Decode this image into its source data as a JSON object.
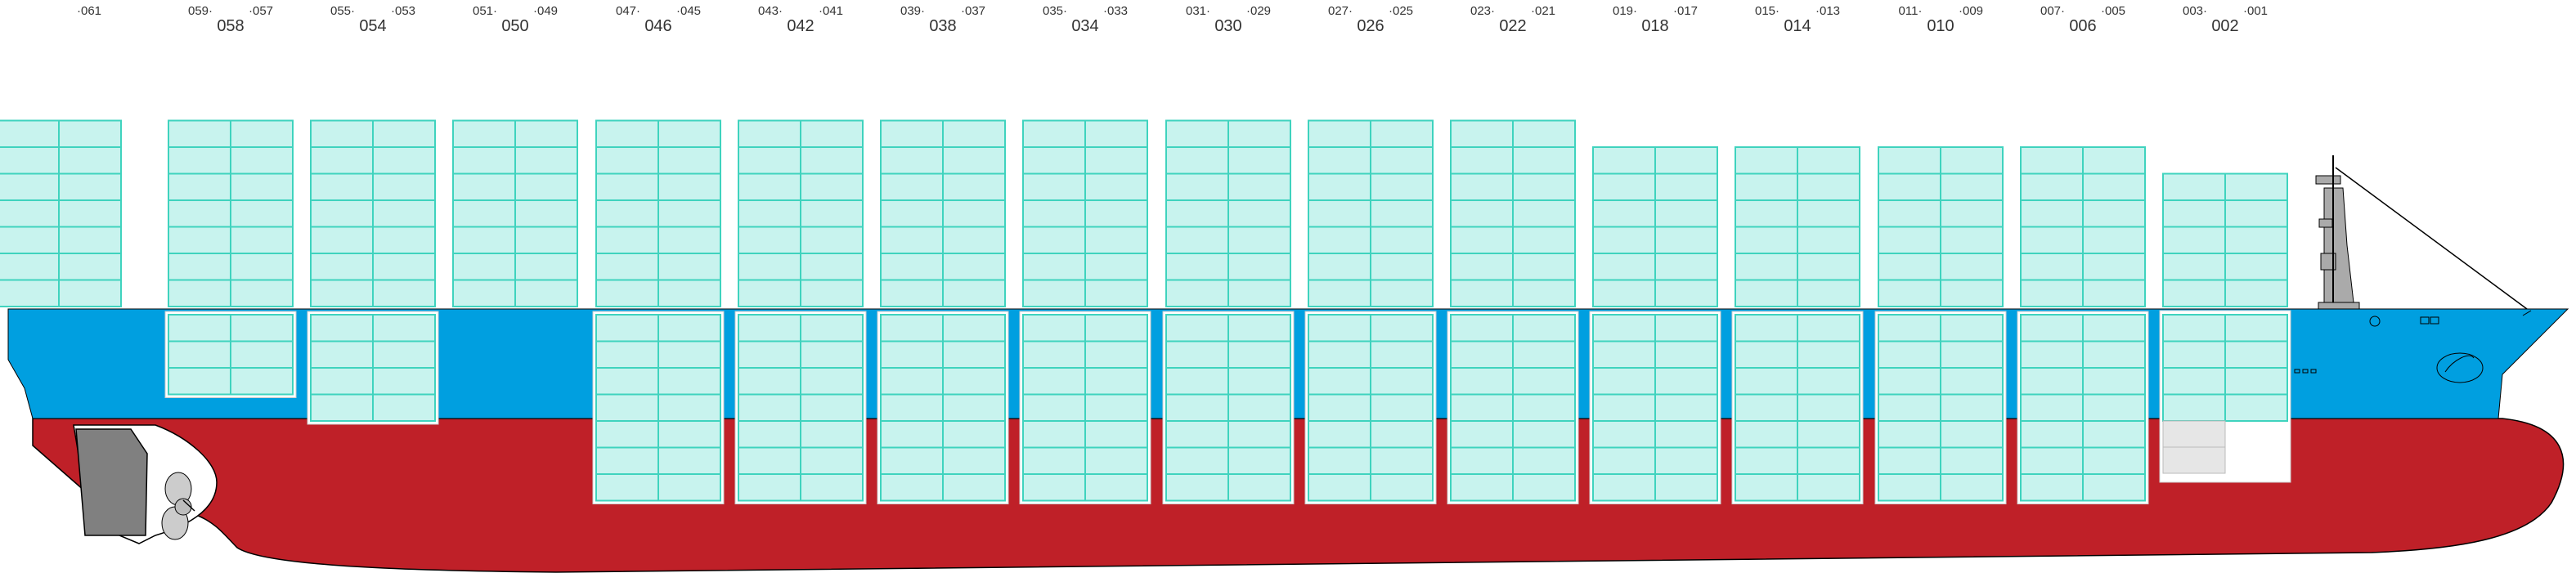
{
  "colors": {
    "hull": "#bf2028",
    "band": "#009fe0",
    "container_fill": "#c8f3ee",
    "container_line": "#3fd3be",
    "machinery": "#808080",
    "background": "#ffffff"
  },
  "bays": [
    {
      "pair": "",
      "aft": "",
      "fwd": "061",
      "deck_tiers": 7,
      "hold_tiers": 0
    },
    {
      "pair": "058",
      "aft": "059",
      "fwd": "057",
      "deck_tiers": 7,
      "hold_tiers": 3
    },
    {
      "pair": "054",
      "aft": "055",
      "fwd": "053",
      "deck_tiers": 7,
      "hold_tiers": 4
    },
    {
      "pair": "050",
      "aft": "051",
      "fwd": "049",
      "deck_tiers": 7,
      "hold_tiers": 0
    },
    {
      "pair": "046",
      "aft": "047",
      "fwd": "045",
      "deck_tiers": 7,
      "hold_tiers": 7
    },
    {
      "pair": "042",
      "aft": "043",
      "fwd": "041",
      "deck_tiers": 7,
      "hold_tiers": 7
    },
    {
      "pair": "038",
      "aft": "039",
      "fwd": "037",
      "deck_tiers": 7,
      "hold_tiers": 7
    },
    {
      "pair": "034",
      "aft": "035",
      "fwd": "033",
      "deck_tiers": 7,
      "hold_tiers": 7
    },
    {
      "pair": "030",
      "aft": "031",
      "fwd": "029",
      "deck_tiers": 7,
      "hold_tiers": 7
    },
    {
      "pair": "026",
      "aft": "027",
      "fwd": "025",
      "deck_tiers": 7,
      "hold_tiers": 7
    },
    {
      "pair": "022",
      "aft": "023",
      "fwd": "021",
      "deck_tiers": 7,
      "hold_tiers": 7
    },
    {
      "pair": "018",
      "aft": "019",
      "fwd": "017",
      "deck_tiers": 6,
      "hold_tiers": 7
    },
    {
      "pair": "014",
      "aft": "015",
      "fwd": "013",
      "deck_tiers": 6,
      "hold_tiers": 7
    },
    {
      "pair": "010",
      "aft": "011",
      "fwd": "009",
      "deck_tiers": 6,
      "hold_tiers": 7
    },
    {
      "pair": "006",
      "aft": "007",
      "fwd": "005",
      "deck_tiers": 6,
      "hold_tiers": 7
    },
    {
      "pair": "002",
      "aft": "003",
      "fwd": "001",
      "deck_tiers": 5,
      "hold_tiers": 6
    }
  ]
}
